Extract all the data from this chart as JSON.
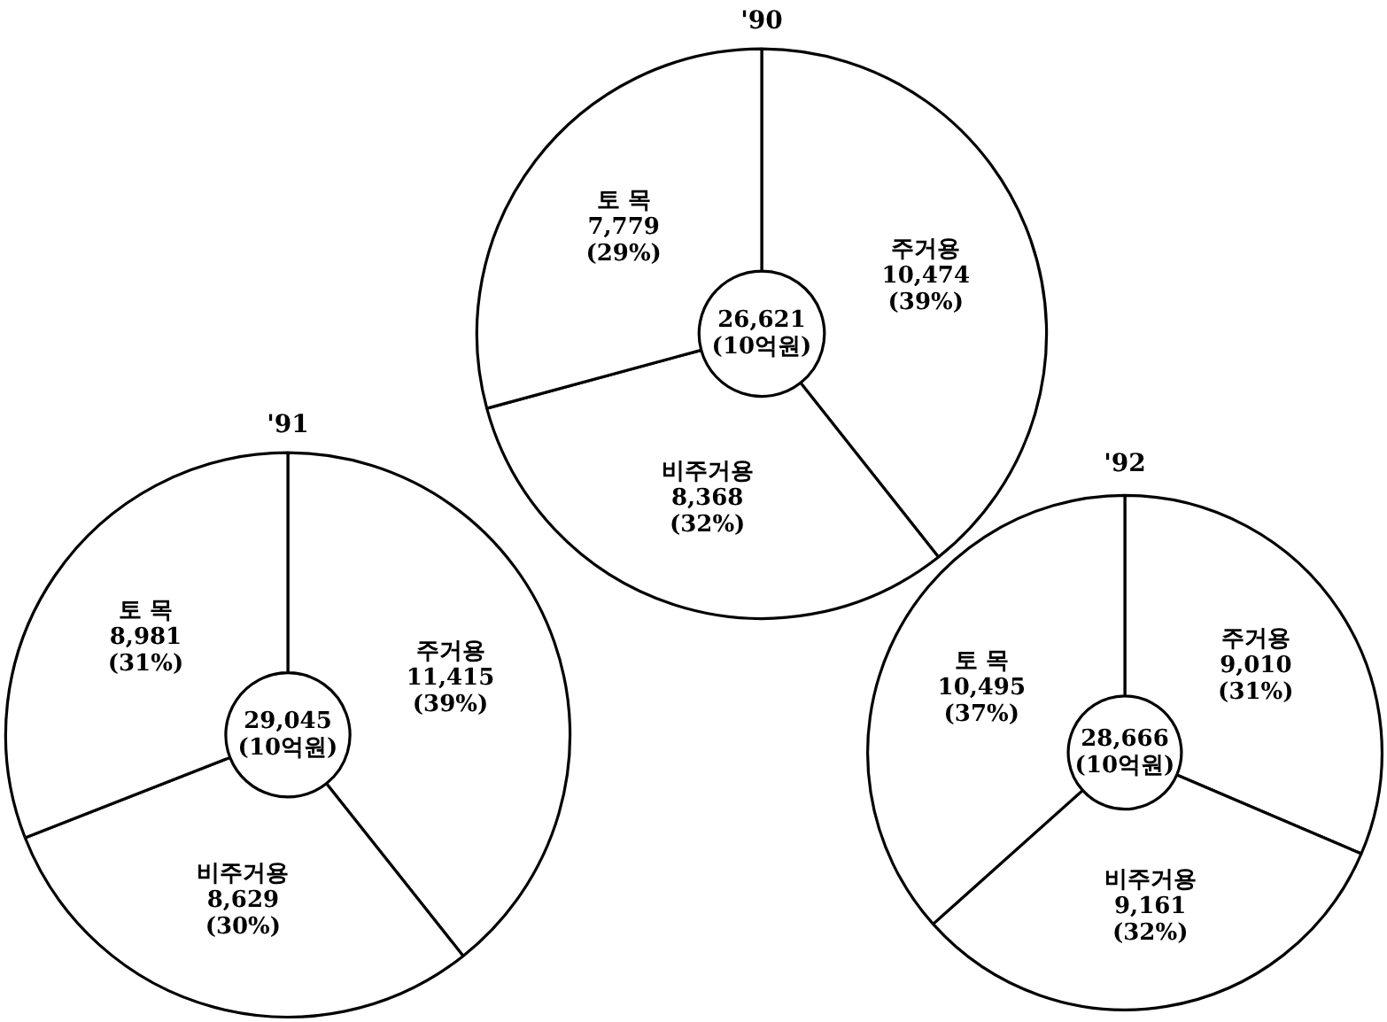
{
  "chart_data": [
    {
      "type": "donut",
      "title": "'90",
      "categories": [
        "주거용",
        "비주거용",
        "토 목"
      ],
      "values": [
        10474,
        8368,
        7779
      ],
      "colors": [
        "#ffffff",
        "#ffffff",
        "#ffffff"
      ],
      "value_labels": [
        "10,474\n(39%)",
        "8,368\n(32%)",
        "7,779\n(29%)"
      ],
      "annotations": [
        "26,621\n(10억원)"
      ]
    },
    {
      "type": "donut",
      "title": "'91",
      "categories": [
        "주거용",
        "비주거용",
        "토 목"
      ],
      "values": [
        11415,
        8629,
        8981
      ],
      "colors": [
        "#ffffff",
        "#ffffff",
        "#ffffff"
      ],
      "value_labels": [
        "11,415\n(39%)",
        "8,629\n(30%)",
        "8,981\n(31%)"
      ],
      "annotations": [
        "29,045\n(10억원)"
      ]
    },
    {
      "type": "donut",
      "title": "'92",
      "categories": [
        "주거용",
        "비주거용",
        "토 목"
      ],
      "values": [
        9010,
        9161,
        10495
      ],
      "colors": [
        "#ffffff",
        "#ffffff",
        "#ffffff"
      ],
      "value_labels": [
        "9,010\n(31%)",
        "9,161\n(32%)",
        "10,495\n(37%)"
      ],
      "annotations": [
        "28,666\n(10억원)"
      ]
    }
  ]
}
